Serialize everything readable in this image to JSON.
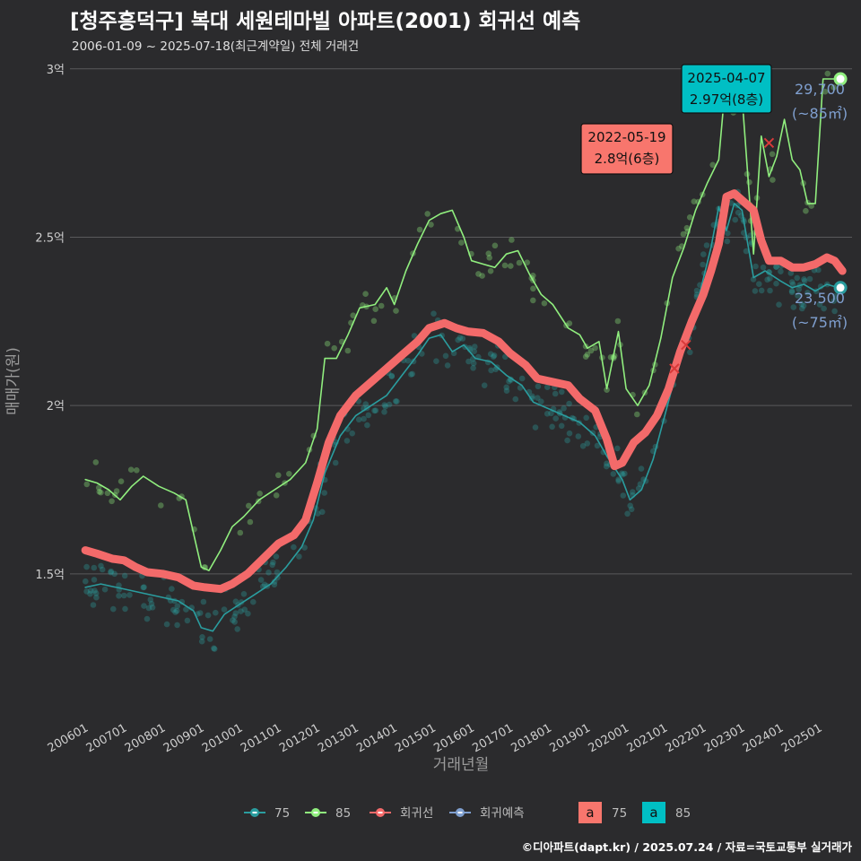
{
  "title": "[청주흥덕구] 복대 세원테마빌 아파트(2001) 회귀선 예측",
  "subtitle": "2006-01-09 ~ 2025-07-18(최근계약일) 전체 거래건",
  "footer": "©디아파트(dapt.kr) / 2025.07.24 / 자료=국토교통부 실거래가",
  "colors": {
    "background": "#2b2b2d",
    "grid": "#5a5a5c",
    "s75": "#2a9d9f",
    "s85": "#90ee7e",
    "regression": "#f36a6a",
    "forecast": "#7f9fcf",
    "label75_bg": "#f8766d",
    "label85_bg": "#00bfc4"
  },
  "chart_data": {
    "type": "line",
    "xlabel": "거래년월",
    "ylabel": "매매가(원)",
    "ylim": [
      1.1,
      3.05
    ],
    "yticks": [
      {
        "v": 1.5,
        "label": "1.5억"
      },
      {
        "v": 2.0,
        "label": "2억"
      },
      {
        "v": 2.5,
        "label": "2.5억"
      },
      {
        "v": 3.0,
        "label": "3억"
      }
    ],
    "xlim": [
      2005.6,
      2025.85
    ],
    "xticks": [
      "200601",
      "200701",
      "200801",
      "200901",
      "201001",
      "201101",
      "201201",
      "201301",
      "201401",
      "201501",
      "201601",
      "201701",
      "201801",
      "201901",
      "202001",
      "202101",
      "202201",
      "202301",
      "202401",
      "202501"
    ],
    "series": [
      {
        "name": "75",
        "key": "s75",
        "points": [
          [
            2006.0,
            1.46
          ],
          [
            2006.4,
            1.47
          ],
          [
            2006.8,
            1.46
          ],
          [
            2007.2,
            1.45
          ],
          [
            2007.6,
            1.44
          ],
          [
            2008.0,
            1.43
          ],
          [
            2008.4,
            1.42
          ],
          [
            2008.8,
            1.39
          ],
          [
            2009.0,
            1.34
          ],
          [
            2009.3,
            1.33
          ],
          [
            2009.6,
            1.38
          ],
          [
            2010.0,
            1.41
          ],
          [
            2010.4,
            1.44
          ],
          [
            2010.8,
            1.47
          ],
          [
            2011.2,
            1.52
          ],
          [
            2011.6,
            1.58
          ],
          [
            2011.9,
            1.66
          ],
          [
            2012.2,
            1.8
          ],
          [
            2012.6,
            1.91
          ],
          [
            2013.0,
            1.97
          ],
          [
            2013.4,
            2.0
          ],
          [
            2013.8,
            2.03
          ],
          [
            2014.2,
            2.09
          ],
          [
            2014.6,
            2.15
          ],
          [
            2014.9,
            2.2
          ],
          [
            2015.2,
            2.21
          ],
          [
            2015.5,
            2.16
          ],
          [
            2015.8,
            2.18
          ],
          [
            2016.1,
            2.14
          ],
          [
            2016.5,
            2.13
          ],
          [
            2016.9,
            2.09
          ],
          [
            2017.3,
            2.06
          ],
          [
            2017.6,
            2.01
          ],
          [
            2018.0,
            1.99
          ],
          [
            2018.4,
            1.97
          ],
          [
            2018.8,
            1.95
          ],
          [
            2019.2,
            1.91
          ],
          [
            2019.5,
            1.85
          ],
          [
            2019.9,
            1.78
          ],
          [
            2020.1,
            1.72
          ],
          [
            2020.4,
            1.75
          ],
          [
            2020.7,
            1.84
          ],
          [
            2021.0,
            1.97
          ],
          [
            2021.3,
            2.1
          ],
          [
            2021.6,
            2.2
          ],
          [
            2021.9,
            2.33
          ],
          [
            2022.2,
            2.47
          ],
          [
            2022.4,
            2.59
          ],
          [
            2022.6,
            2.52
          ],
          [
            2022.8,
            2.6
          ],
          [
            2023.0,
            2.58
          ],
          [
            2023.3,
            2.38
          ],
          [
            2023.6,
            2.4
          ],
          [
            2024.0,
            2.37
          ],
          [
            2024.3,
            2.35
          ],
          [
            2024.6,
            2.36
          ],
          [
            2024.9,
            2.34
          ],
          [
            2025.2,
            2.36
          ],
          [
            2025.5,
            2.35
          ]
        ]
      },
      {
        "name": "85",
        "key": "s85",
        "points": [
          [
            2006.0,
            1.78
          ],
          [
            2006.3,
            1.77
          ],
          [
            2006.6,
            1.75
          ],
          [
            2006.9,
            1.72
          ],
          [
            2007.2,
            1.76
          ],
          [
            2007.5,
            1.79
          ],
          [
            2007.9,
            1.76
          ],
          [
            2008.3,
            1.74
          ],
          [
            2008.6,
            1.72
          ],
          [
            2008.8,
            1.62
          ],
          [
            2009.0,
            1.52
          ],
          [
            2009.2,
            1.51
          ],
          [
            2009.5,
            1.57
          ],
          [
            2009.8,
            1.64
          ],
          [
            2010.1,
            1.67
          ],
          [
            2010.5,
            1.72
          ],
          [
            2010.9,
            1.75
          ],
          [
            2011.3,
            1.78
          ],
          [
            2011.7,
            1.83
          ],
          [
            2012.0,
            1.93
          ],
          [
            2012.2,
            2.14
          ],
          [
            2012.5,
            2.14
          ],
          [
            2012.8,
            2.21
          ],
          [
            2013.1,
            2.29
          ],
          [
            2013.5,
            2.3
          ],
          [
            2013.8,
            2.35
          ],
          [
            2014.0,
            2.3
          ],
          [
            2014.3,
            2.4
          ],
          [
            2014.6,
            2.48
          ],
          [
            2014.9,
            2.55
          ],
          [
            2015.2,
            2.57
          ],
          [
            2015.5,
            2.58
          ],
          [
            2015.8,
            2.5
          ],
          [
            2016.0,
            2.43
          ],
          [
            2016.3,
            2.42
          ],
          [
            2016.6,
            2.41
          ],
          [
            2016.9,
            2.45
          ],
          [
            2017.2,
            2.46
          ],
          [
            2017.5,
            2.39
          ],
          [
            2017.8,
            2.33
          ],
          [
            2018.1,
            2.3
          ],
          [
            2018.5,
            2.23
          ],
          [
            2018.8,
            2.21
          ],
          [
            2019.0,
            2.17
          ],
          [
            2019.3,
            2.19
          ],
          [
            2019.5,
            2.05
          ],
          [
            2019.8,
            2.22
          ],
          [
            2020.0,
            2.05
          ],
          [
            2020.3,
            2.0
          ],
          [
            2020.6,
            2.06
          ],
          [
            2020.9,
            2.2
          ],
          [
            2021.2,
            2.38
          ],
          [
            2021.5,
            2.47
          ],
          [
            2021.8,
            2.58
          ],
          [
            2022.1,
            2.66
          ],
          [
            2022.4,
            2.73
          ],
          [
            2022.6,
            2.99
          ],
          [
            2022.8,
            2.89
          ],
          [
            2023.0,
            2.92
          ],
          [
            2023.3,
            2.45
          ],
          [
            2023.5,
            2.8
          ],
          [
            2023.7,
            2.68
          ],
          [
            2023.9,
            2.74
          ],
          [
            2024.1,
            2.85
          ],
          [
            2024.3,
            2.73
          ],
          [
            2024.5,
            2.7
          ],
          [
            2024.7,
            2.6
          ],
          [
            2024.9,
            2.6
          ],
          [
            2025.1,
            2.97
          ],
          [
            2025.5,
            2.97
          ]
        ]
      },
      {
        "name": "회귀선",
        "key": "regression",
        "points": [
          [
            2006.0,
            1.57
          ],
          [
            2006.3,
            1.56
          ],
          [
            2006.7,
            1.545
          ],
          [
            2007.0,
            1.54
          ],
          [
            2007.3,
            1.52
          ],
          [
            2007.6,
            1.505
          ],
          [
            2008.0,
            1.5
          ],
          [
            2008.4,
            1.49
          ],
          [
            2008.8,
            1.465
          ],
          [
            2009.1,
            1.46
          ],
          [
            2009.5,
            1.455
          ],
          [
            2009.8,
            1.47
          ],
          [
            2010.2,
            1.5
          ],
          [
            2010.6,
            1.545
          ],
          [
            2011.0,
            1.59
          ],
          [
            2011.4,
            1.615
          ],
          [
            2011.7,
            1.66
          ],
          [
            2012.0,
            1.77
          ],
          [
            2012.3,
            1.89
          ],
          [
            2012.6,
            1.97
          ],
          [
            2013.0,
            2.03
          ],
          [
            2013.4,
            2.07
          ],
          [
            2013.8,
            2.11
          ],
          [
            2014.2,
            2.15
          ],
          [
            2014.6,
            2.19
          ],
          [
            2014.9,
            2.23
          ],
          [
            2015.3,
            2.245
          ],
          [
            2015.6,
            2.23
          ],
          [
            2015.9,
            2.22
          ],
          [
            2016.3,
            2.215
          ],
          [
            2016.7,
            2.19
          ],
          [
            2017.0,
            2.155
          ],
          [
            2017.4,
            2.12
          ],
          [
            2017.7,
            2.08
          ],
          [
            2018.1,
            2.07
          ],
          [
            2018.5,
            2.06
          ],
          [
            2018.8,
            2.02
          ],
          [
            2019.2,
            1.985
          ],
          [
            2019.5,
            1.9
          ],
          [
            2019.7,
            1.82
          ],
          [
            2019.9,
            1.83
          ],
          [
            2020.2,
            1.89
          ],
          [
            2020.5,
            1.92
          ],
          [
            2020.8,
            1.97
          ],
          [
            2021.1,
            2.05
          ],
          [
            2021.4,
            2.16
          ],
          [
            2021.7,
            2.25
          ],
          [
            2022.0,
            2.33
          ],
          [
            2022.2,
            2.4
          ],
          [
            2022.4,
            2.48
          ],
          [
            2022.6,
            2.62
          ],
          [
            2022.8,
            2.63
          ],
          [
            2023.0,
            2.61
          ],
          [
            2023.3,
            2.58
          ],
          [
            2023.5,
            2.49
          ],
          [
            2023.7,
            2.43
          ],
          [
            2024.0,
            2.43
          ],
          [
            2024.3,
            2.41
          ],
          [
            2024.6,
            2.41
          ],
          [
            2024.9,
            2.42
          ],
          [
            2025.2,
            2.44
          ],
          [
            2025.4,
            2.43
          ],
          [
            2025.6,
            2.4
          ]
        ]
      }
    ],
    "markers": [
      {
        "series": "75",
        "x": 2025.55,
        "y": 2.35,
        "value_label": "23,500",
        "area_label": "(~75㎡)"
      },
      {
        "series": "85",
        "x": 2025.55,
        "y": 2.97,
        "value_label": "29,700",
        "area_label": "(~85㎡)"
      }
    ],
    "cross_marks": [
      [
        2023.7,
        2.78
      ],
      [
        2021.55,
        2.18
      ],
      [
        2021.25,
        2.11
      ]
    ],
    "annotations": [
      {
        "series": "75",
        "date": "2022-05-19",
        "text": "2.8억(6층)"
      },
      {
        "series": "85",
        "date": "2025-04-07",
        "text": "2.97억(8층)"
      }
    ],
    "legend": {
      "placement": "bottom",
      "items": [
        "75",
        "85",
        "회귀선",
        "회귀예측"
      ],
      "label_keys": [
        {
          "glyph": "a",
          "name": "75"
        },
        {
          "glyph": "a",
          "name": "85"
        }
      ]
    }
  }
}
